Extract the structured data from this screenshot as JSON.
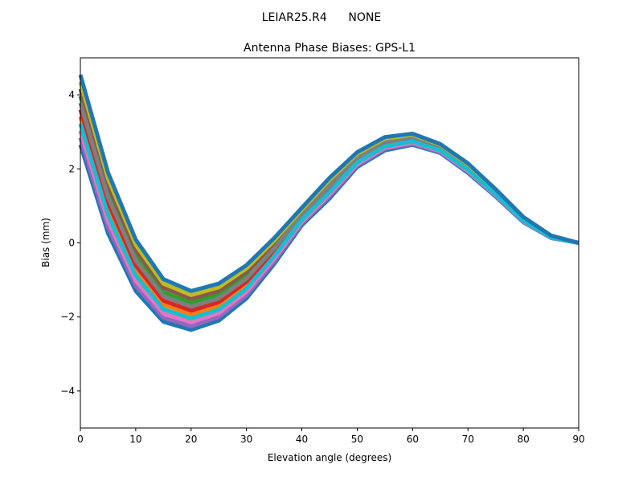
{
  "chart_data": {
    "type": "line",
    "suptitle": "LEIAR25.R4      NONE",
    "title": "Antenna Phase Biases: GPS-L1",
    "xlabel": "Elevation angle (degrees)",
    "ylabel": "Bias (mm)",
    "xlim": [
      0,
      90
    ],
    "ylim": [
      -5,
      5
    ],
    "xticks": [
      0,
      10,
      20,
      30,
      40,
      50,
      60,
      70,
      80,
      90
    ],
    "yticks": [
      -4,
      -2,
      0,
      2,
      4
    ],
    "grid": false,
    "x": [
      0,
      5,
      10,
      15,
      20,
      25,
      30,
      35,
      40,
      45,
      50,
      55,
      60,
      65,
      70,
      75,
      80,
      85,
      90
    ],
    "colors": [
      "#1f77b4",
      "#ff7f0e",
      "#2ca02c",
      "#d62728",
      "#9467bd",
      "#8c564b",
      "#e377c2",
      "#7f7f7f",
      "#bcbd22",
      "#17becf"
    ],
    "series": [
      {
        "values": [
          2.65,
          0.26,
          -1.3,
          -2.13,
          -2.35,
          -2.1,
          -1.5,
          -0.57,
          0.48,
          1.2,
          2.05,
          2.5,
          2.65,
          2.43,
          1.89,
          1.25,
          0.56,
          0.13,
          0
        ]
      },
      {
        "values": [
          3.41,
          0.92,
          -0.74,
          -1.67,
          -1.93,
          -1.7,
          -1.14,
          -0.29,
          0.67,
          1.42,
          2.21,
          2.64,
          2.77,
          2.53,
          2.0,
          1.33,
          0.62,
          0.16,
          0
        ]
      },
      {
        "values": [
          3.97,
          1.41,
          -0.33,
          -1.33,
          -1.62,
          -1.4,
          -0.87,
          -0.08,
          0.81,
          1.59,
          2.33,
          2.75,
          2.86,
          2.6,
          2.07,
          1.39,
          0.66,
          0.18,
          0
        ]
      },
      {
        "values": [
          3.6,
          1.08,
          -0.61,
          -1.56,
          -1.83,
          -1.6,
          -1.05,
          -0.22,
          0.72,
          1.48,
          2.25,
          2.68,
          2.8,
          2.55,
          2.02,
          1.35,
          0.63,
          0.17,
          0
        ]
      },
      {
        "values": [
          2.84,
          0.42,
          -1.16,
          -2.02,
          -2.25,
          -2.0,
          -1.41,
          -0.5,
          0.53,
          1.26,
          2.09,
          2.54,
          2.68,
          2.45,
          1.92,
          1.27,
          0.57,
          0.14,
          0
        ]
      },
      {
        "values": [
          4.16,
          1.57,
          -0.19,
          -1.21,
          -1.51,
          -1.3,
          -0.78,
          -0.01,
          0.86,
          1.65,
          2.37,
          2.79,
          2.89,
          2.62,
          2.1,
          1.41,
          0.67,
          0.19,
          0
        ]
      },
      {
        "values": [
          3.03,
          0.59,
          -1.02,
          -1.9,
          -2.14,
          -1.9,
          -1.32,
          -0.43,
          0.57,
          1.31,
          2.13,
          2.57,
          2.71,
          2.48,
          1.94,
          1.29,
          0.59,
          0.14,
          0
        ]
      },
      {
        "values": [
          3.78,
          1.24,
          -0.47,
          -1.44,
          -1.72,
          -1.5,
          -0.96,
          -0.15,
          0.76,
          1.54,
          2.29,
          2.72,
          2.83,
          2.57,
          2.05,
          1.37,
          0.64,
          0.17,
          0
        ]
      },
      {
        "values": [
          4.35,
          1.74,
          -0.05,
          -1.1,
          -1.41,
          -1.2,
          -0.69,
          0.06,
          0.9,
          1.7,
          2.41,
          2.82,
          2.92,
          2.65,
          2.12,
          1.43,
          0.69,
          0.19,
          0
        ]
      },
      {
        "values": [
          3.22,
          0.75,
          -0.88,
          -1.79,
          -2.04,
          -1.8,
          -1.23,
          -0.36,
          0.62,
          1.37,
          2.17,
          2.61,
          2.74,
          2.5,
          1.97,
          1.31,
          0.6,
          0.15,
          0
        ]
      },
      {
        "values": [
          4.54,
          1.9,
          0.09,
          -0.98,
          -1.3,
          -1.1,
          -0.6,
          0.13,
          0.95,
          1.76,
          2.45,
          2.86,
          2.95,
          2.67,
          2.15,
          1.45,
          0.7,
          0.2,
          0
        ]
      }
    ]
  }
}
